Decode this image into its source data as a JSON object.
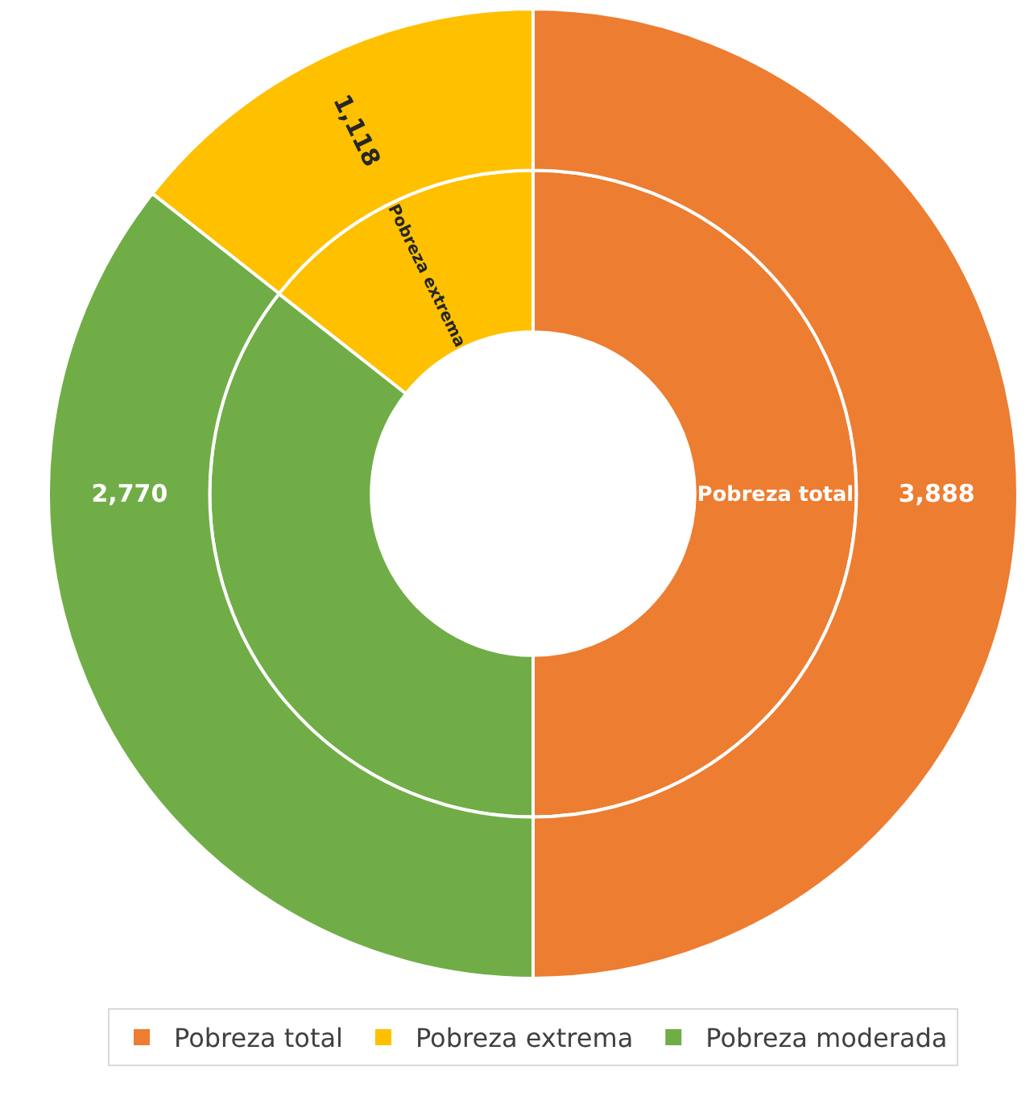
{
  "chart_data": {
    "type": "donut",
    "categories": [
      "Pobreza total",
      "Pobreza extrema",
      "Pobreza moderada"
    ],
    "colors": [
      "#ed7d31",
      "#ffc000",
      "#70ad47"
    ],
    "legend": "bottom",
    "series": [
      {
        "values": [
          50,
          14.4,
          35.6
        ],
        "value_labels": [
          "Pobreza total",
          "Pobreza extrema",
          null
        ]
      },
      {
        "values": [
          3888,
          1118,
          2770
        ],
        "value_labels": [
          "3,888",
          "1,118",
          "2,770"
        ]
      }
    ]
  }
}
